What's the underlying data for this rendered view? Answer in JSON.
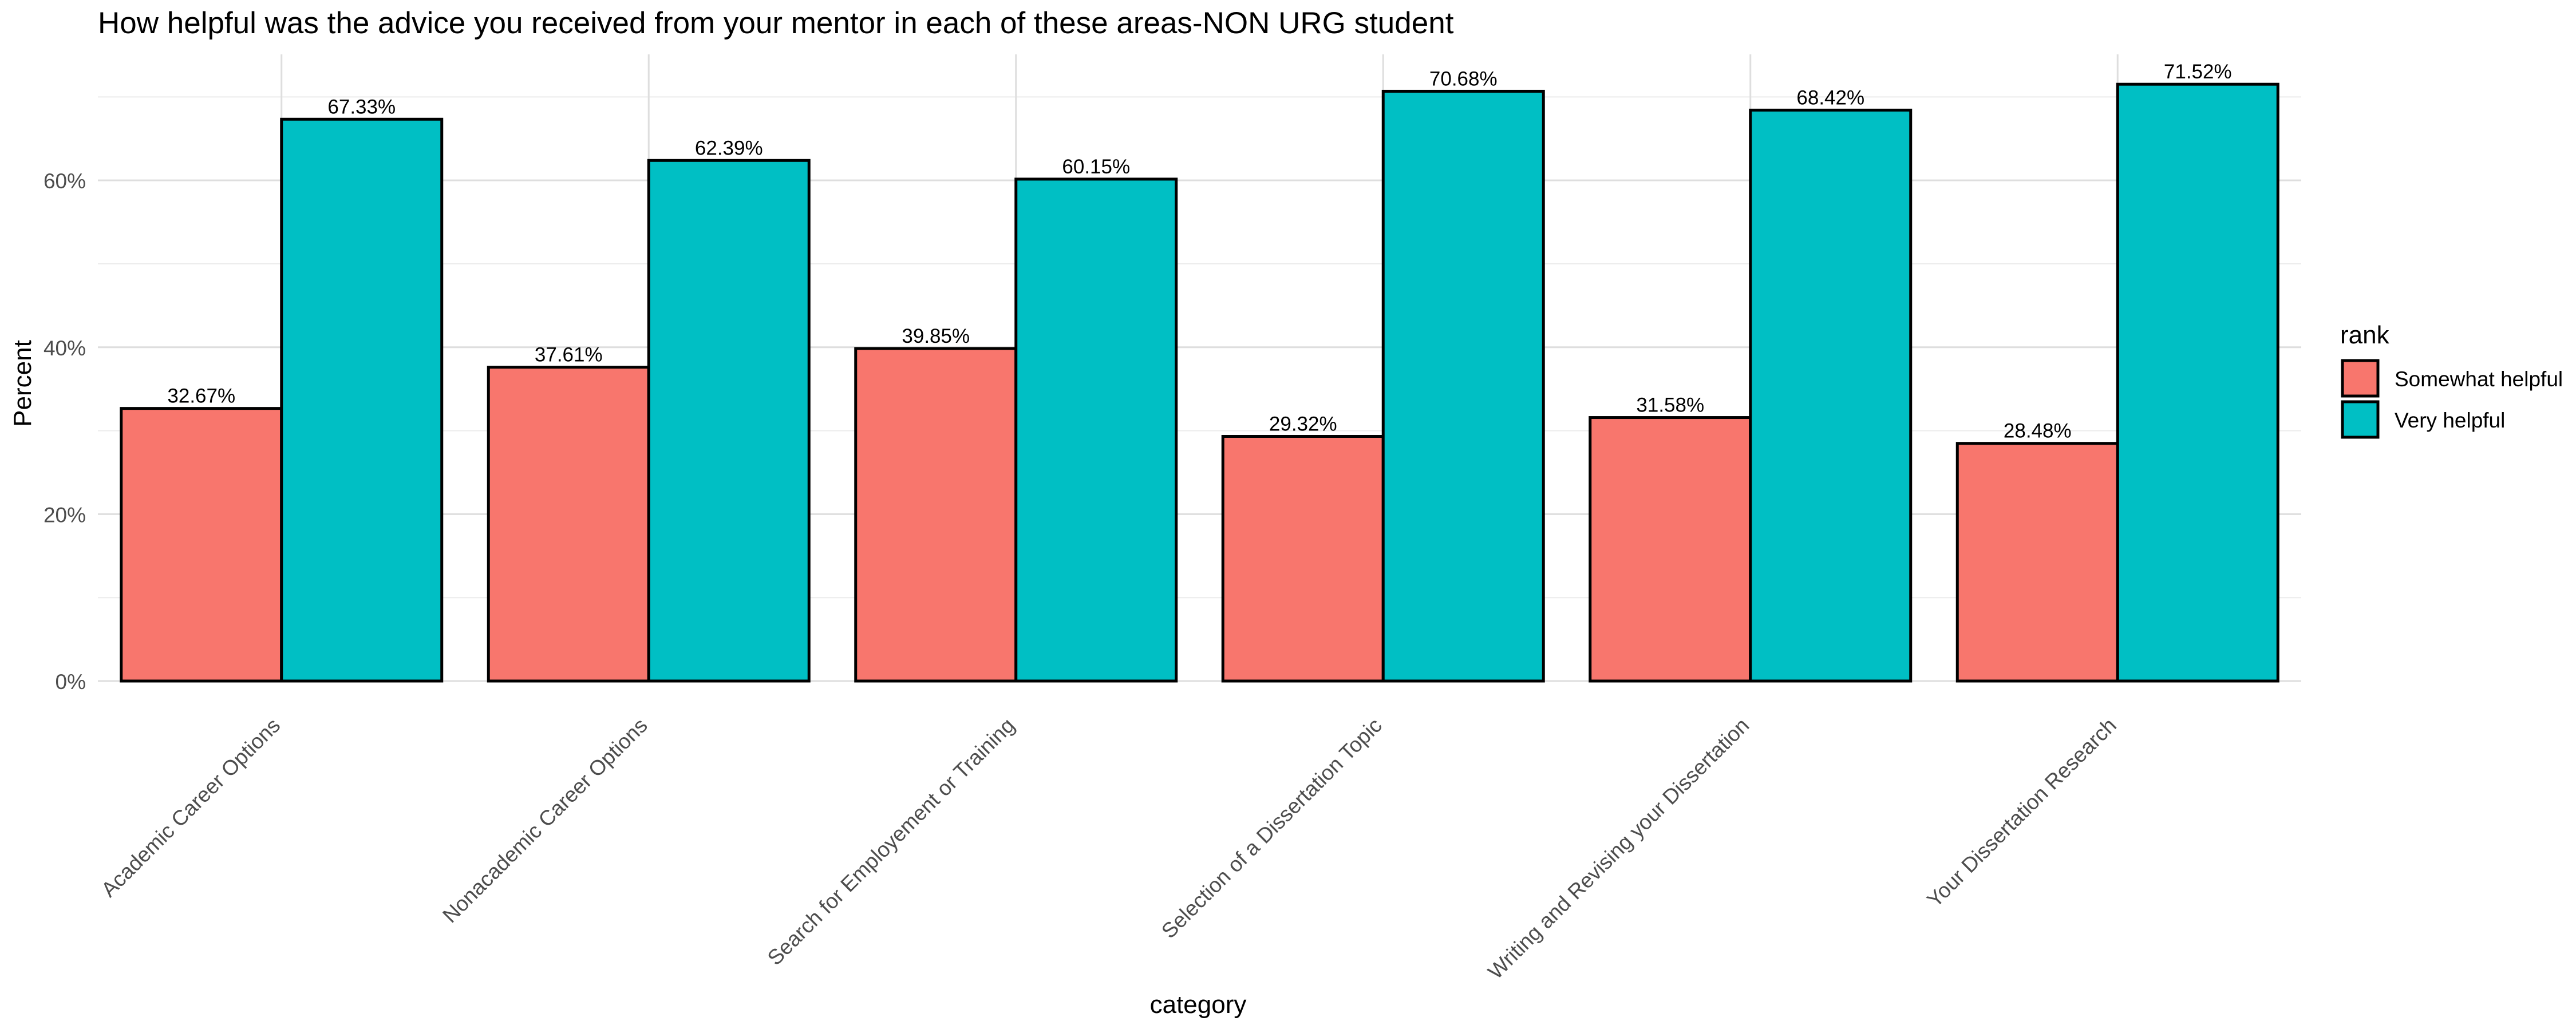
{
  "chart_data": {
    "type": "bar",
    "title": "How helpful was the advice you received from your mentor in each of these areas-NON URG student",
    "xlabel": "category",
    "ylabel": "Percent",
    "categories": [
      "Academic Career Options",
      "Nonacademic Career Options",
      "Search for Employement or Training",
      "Selection of a Dissertation Topic",
      "Writing and Revising your Dissertation",
      "Your Dissertation Research"
    ],
    "series": [
      {
        "name": "Somewhat helpful",
        "color": "#F8766D",
        "values": [
          32.67,
          37.61,
          39.85,
          29.32,
          31.58,
          28.48
        ],
        "labels": [
          "32.67%",
          "37.61%",
          "39.85%",
          "29.32%",
          "31.58%",
          "28.48%"
        ]
      },
      {
        "name": "Very helpful",
        "color": "#00BFC4",
        "values": [
          67.33,
          62.39,
          60.15,
          70.68,
          68.42,
          71.52
        ],
        "labels": [
          "67.33%",
          "62.39%",
          "60.15%",
          "70.68%",
          "68.42%",
          "71.52%"
        ]
      }
    ],
    "yticks": [
      0,
      20,
      40,
      60
    ],
    "ytick_labels": [
      "0%",
      "20%",
      "40%",
      "60%"
    ],
    "ylim": [
      0,
      75.1
    ],
    "legend_title": "rank",
    "legend_position": "right",
    "grid": true
  }
}
